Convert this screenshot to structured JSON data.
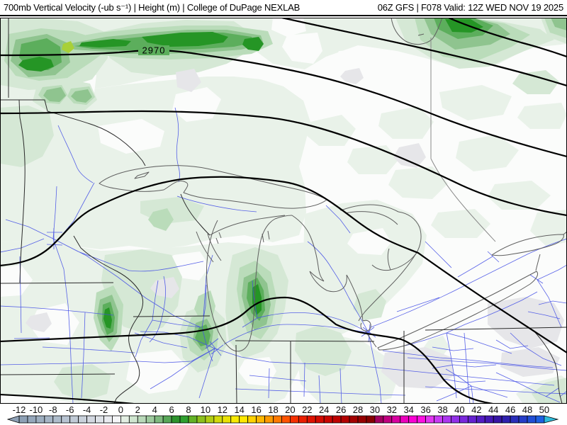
{
  "header": {
    "left_title": "700mb Vertical Velocity (-ub s⁻¹) | Height (m) | College of DuPage NEXLAB",
    "right_title": "06Z GFS | F078 Valid: 12Z WED NOV 19 2025"
  },
  "map": {
    "contour_label": "2970"
  },
  "colorbar": {
    "tick_labels": [
      "-12",
      "-10",
      "-8",
      "-6",
      "-4",
      "-2",
      "0",
      "2",
      "4",
      "6",
      "8",
      "10",
      "12",
      "14",
      "16",
      "18",
      "20",
      "22",
      "24",
      "26",
      "28",
      "30",
      "32",
      "34",
      "36",
      "38",
      "40",
      "42",
      "44",
      "46",
      "48",
      "50"
    ],
    "cell_colors": [
      "#8da0b5",
      "#95a7bb",
      "#9daec0",
      "#a6b5c6",
      "#aebccb",
      "#b7c3d1",
      "#c0cad6",
      "#c9d1db",
      "#d3d8e1",
      "#dee2e8",
      "#e9ebf0",
      "#f5f6f8",
      "#e3efe3",
      "#cfe5cf",
      "#b9d9b9",
      "#9fcb9f",
      "#80ba80",
      "#58a758",
      "#2d932d",
      "#2fa02f",
      "#63b226",
      "#8cc01d",
      "#b0cd14",
      "#d2da0c",
      "#e9e206",
      "#f8ea02",
      "#ffe800",
      "#ffd200",
      "#ffb700",
      "#ff9a00",
      "#ff7a00",
      "#ff5300",
      "#f63000",
      "#ea1e00",
      "#de1200",
      "#d30a00",
      "#c90400",
      "#be0100",
      "#b20000",
      "#a40000",
      "#960000",
      "#860000",
      "#a3005f",
      "#c00080",
      "#d800a0",
      "#ec00bd",
      "#fa00d4",
      "#ff10e2",
      "#e236f2",
      "#c93bf5",
      "#ad36f0",
      "#9230e8",
      "#7a28dd",
      "#6521d1",
      "#531cc4",
      "#4518b5",
      "#3715a5",
      "#2f20ae",
      "#2a2eba",
      "#253dc8",
      "#204ed6",
      "#1c60e3"
    ],
    "arrow_left_color": "#8da0b5",
    "arrow_right_color": "#2fbcdc",
    "border_color": "#000000"
  },
  "colors": {
    "shading_levels": [
      "#fbfcfb",
      "#e9f2e9",
      "#d5e8d5",
      "#badcba",
      "#8fc48f",
      "#5cae5c",
      "#259525",
      "#a8d038"
    ],
    "gray_shade": "#e6e6e9",
    "contour": "#000000",
    "coastline": "#5f5f5f",
    "roads": "#4550e6",
    "background": "#ffffff"
  }
}
